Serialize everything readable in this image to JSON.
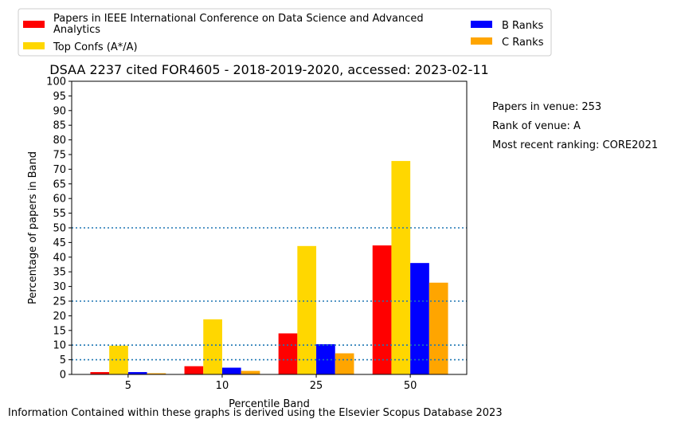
{
  "notes": {
    "papers_in_venue": "Papers in venue: 253",
    "rank_of_venue": "Rank of venue: A",
    "recent_ranking": "Most recent ranking: CORE2021"
  },
  "footer": "Information Contained within these graphs is derived using the Elsevier Scopus Database 2023",
  "chart_data": {
    "type": "bar",
    "title": "DSAA 2237 cited FOR4605 - 2018-2019-2020, accessed: 2023-02-11",
    "xlabel": "Percentile Band",
    "ylabel": "Percentage of papers in Band",
    "categories": [
      "5",
      "10",
      "25",
      "50"
    ],
    "ylim": [
      0,
      100
    ],
    "yticks": [
      0,
      5,
      10,
      15,
      20,
      25,
      30,
      35,
      40,
      45,
      50,
      55,
      60,
      65,
      70,
      75,
      80,
      85,
      90,
      95,
      100
    ],
    "reference_lines": [
      5,
      10,
      25,
      50
    ],
    "legend_position": "top",
    "series": [
      {
        "name": "Papers in IEEE International Conference on Data Science and Advanced Analytics",
        "color": "#ff0000",
        "values": [
          0.8,
          2.8,
          14.0,
          44.0
        ]
      },
      {
        "name": "Top Confs (A*/A)",
        "color": "#ffd700",
        "values": [
          9.8,
          18.8,
          43.8,
          72.8
        ]
      },
      {
        "name": "B Ranks",
        "color": "#0000ff",
        "values": [
          0.8,
          2.3,
          10.3,
          38.0
        ]
      },
      {
        "name": "C Ranks",
        "color": "#ffa500",
        "values": [
          0.4,
          1.2,
          7.2,
          31.3
        ]
      }
    ]
  }
}
